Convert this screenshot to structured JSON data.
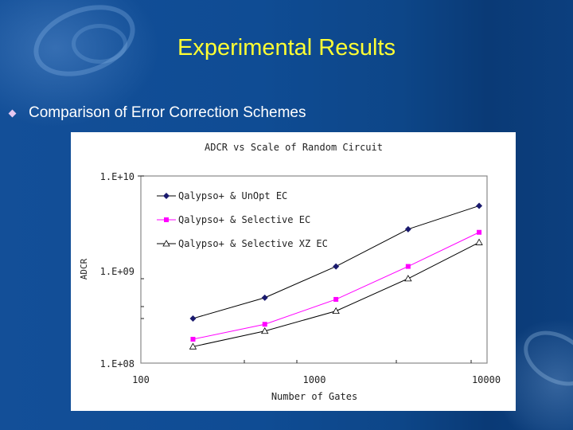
{
  "slide": {
    "title": "Experimental Results",
    "bullet": "Comparison of Error Correction Schemes",
    "colors": {
      "title": "#ffff33",
      "background": "#0f4c94",
      "bullet_marker": "#e6c8f0"
    }
  },
  "chart": {
    "title": "ADCR vs Scale of Random Circuit",
    "xlabel": "Number of Gates",
    "ylabel": "ADCR",
    "x_ticks": [
      "100",
      "1000",
      "10000"
    ],
    "y_ticks": [
      "1.E+10",
      "1.E+09",
      "1.E+08"
    ],
    "legend": [
      "Qalypso+ & UnOpt EC",
      "Qalypso+ & Selective EC",
      "Qalypso+ & Selective XZ EC"
    ]
  },
  "chart_data": {
    "type": "line",
    "title": "ADCR vs Scale of Random Circuit",
    "xlabel": "Number of Gates",
    "ylabel": "ADCR",
    "xscale": "log",
    "yscale": "log",
    "xlim": [
      100,
      10000
    ],
    "ylim": [
      100000000,
      10000000000
    ],
    "x_tick_labels": [
      "100",
      "1000",
      "10000"
    ],
    "y_tick_labels": [
      "1.E+08",
      "1.E+09",
      "1.E+10"
    ],
    "grid": false,
    "legend_position": "upper left (inside)",
    "x": [
      200,
      520,
      1340,
      3500,
      9000
    ],
    "series": [
      {
        "name": "Qalypso+ & UnOpt EC",
        "marker": "diamond",
        "color": "#1a1a6e",
        "line_color": "#000000",
        "values": [
          300000000,
          500000000,
          1080000000,
          2700000000,
          4800000000
        ]
      },
      {
        "name": "Qalypso+ & Selective EC",
        "marker": "square",
        "color": "#ff00ff",
        "line_color": "#ff00ff",
        "values": [
          180000000,
          260000000,
          480000000,
          1080000000,
          2500000000
        ]
      },
      {
        "name": "Qalypso+ & Selective XZ EC",
        "marker": "triangle-open",
        "color": "#000000",
        "line_color": "#000000",
        "values": [
          150000000,
          220000000,
          360000000,
          800000000,
          1950000000
        ]
      }
    ]
  }
}
